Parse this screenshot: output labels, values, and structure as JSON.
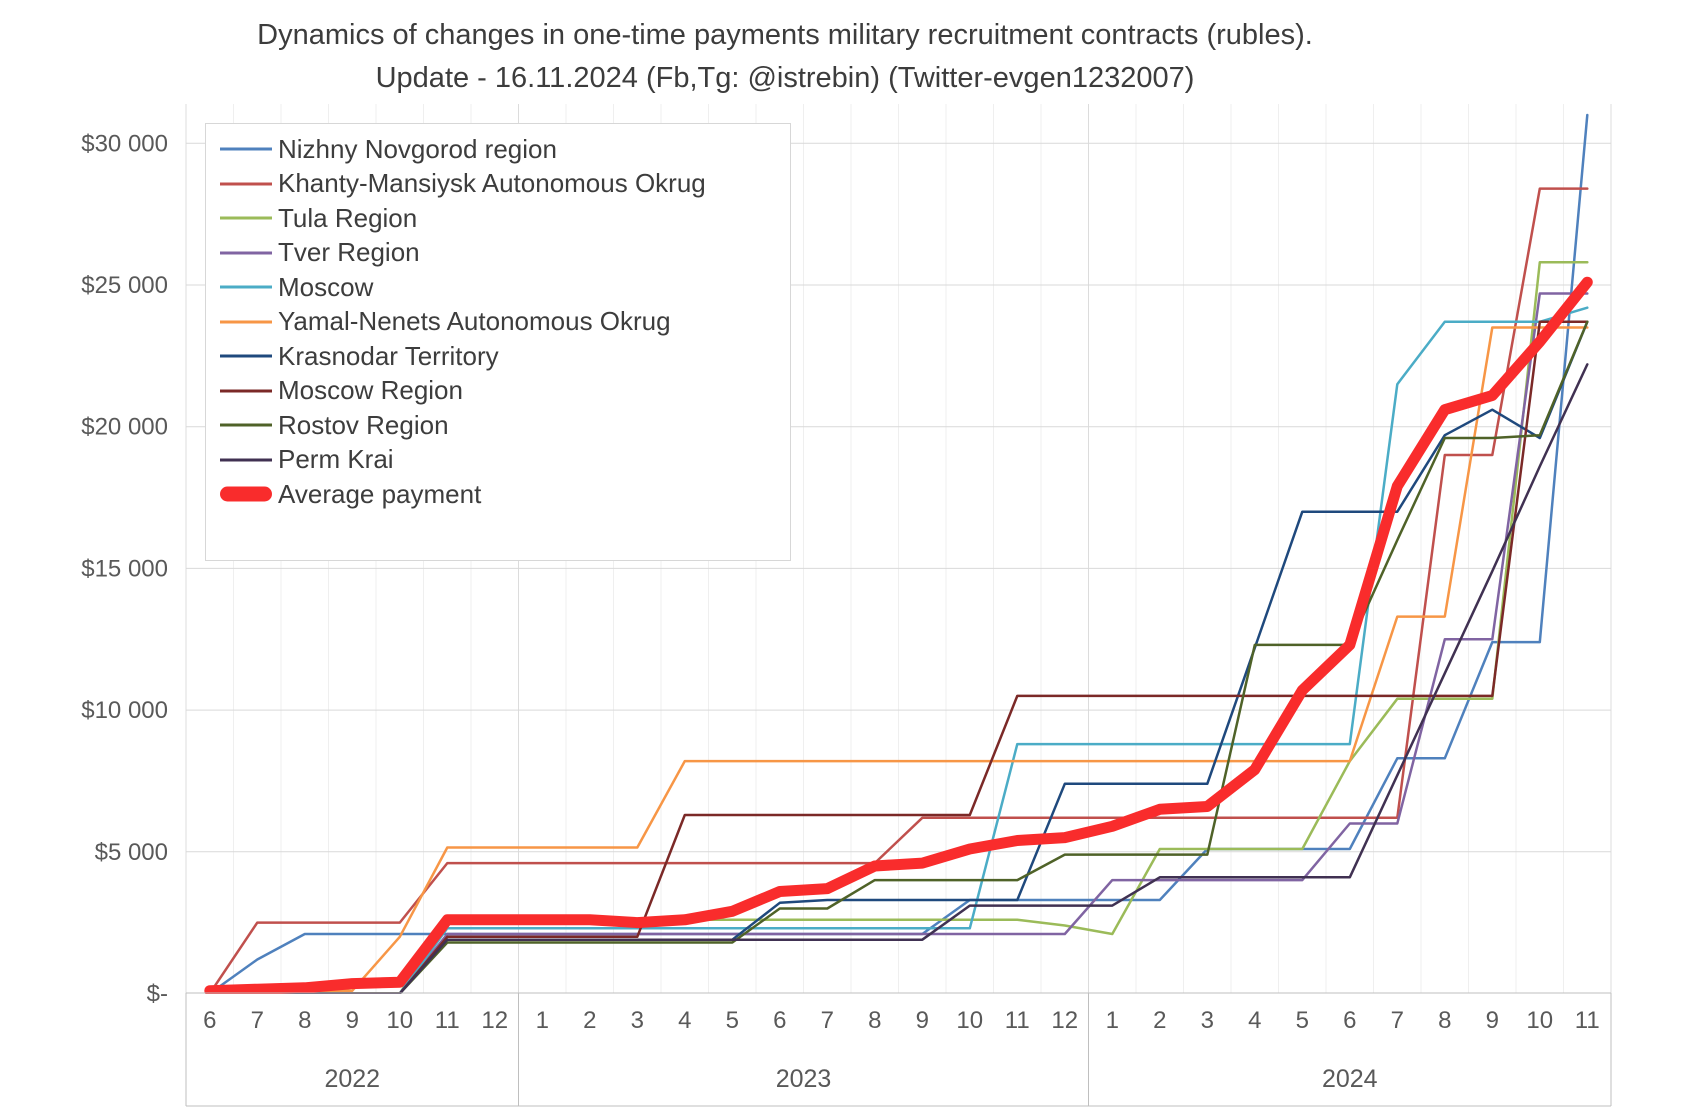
{
  "title": {
    "line1": "Dynamics of changes in one-time payments military recruitment contracts (rubles).",
    "line2": "Update - 16.11.2024 (Fb,Tg: @istrebin) (Twitter-evgen1232007)"
  },
  "chart_data": {
    "type": "line",
    "title": "Dynamics of changes in one-time payments military recruitment contracts (rubles). Update - 16.11.2024 (Fb,Tg: @istrebin) (Twitter-evgen1232007)",
    "xlabel": "",
    "ylabel": "",
    "grid": true,
    "legend_position": "top-left-inside",
    "ylim": [
      0,
      31500
    ],
    "y_ticks": [
      {
        "value": 0,
        "label": "$-"
      },
      {
        "value": 5000,
        "label": "$5 000"
      },
      {
        "value": 10000,
        "label": "$10 000"
      },
      {
        "value": 15000,
        "label": "$15 000"
      },
      {
        "value": 20000,
        "label": "$20 000"
      },
      {
        "value": 25000,
        "label": "$25 000"
      },
      {
        "value": 30000,
        "label": "$30 000"
      }
    ],
    "x_month_labels": [
      "6",
      "7",
      "8",
      "9",
      "10",
      "11",
      "12",
      "1",
      "2",
      "3",
      "4",
      "5",
      "6",
      "7",
      "8",
      "9",
      "10",
      "11",
      "12",
      "1",
      "2",
      "3",
      "4",
      "5",
      "6",
      "7",
      "8",
      "9",
      "10",
      "11"
    ],
    "year_groups": [
      {
        "year": "2022",
        "months": 7
      },
      {
        "year": "2023",
        "months": 12
      },
      {
        "year": "2024",
        "months": 11
      }
    ],
    "series": [
      {
        "name": "Nizhny Novgorod region",
        "color": "#4F81BD",
        "width": 2.5,
        "values": [
          0,
          1200,
          2100,
          2100,
          2100,
          2100,
          2100,
          2100,
          2100,
          2100,
          2100,
          2100,
          2100,
          2100,
          2100,
          2100,
          3300,
          3300,
          3300,
          3300,
          3300,
          5100,
          5100,
          5100,
          5100,
          8300,
          8300,
          12400,
          12400,
          31000
        ]
      },
      {
        "name": "Khanty-Mansiysk Autonomous Okrug",
        "color": "#C0504D",
        "width": 2.5,
        "values": [
          0,
          2500,
          2500,
          2500,
          2500,
          4600,
          4600,
          4600,
          4600,
          4600,
          4600,
          4600,
          4600,
          4600,
          4600,
          6200,
          6200,
          6200,
          6200,
          6200,
          6200,
          6200,
          6200,
          6200,
          6200,
          6200,
          19000,
          19000,
          28400,
          28400
        ]
      },
      {
        "name": "Tula Region",
        "color": "#9BBB59",
        "width": 2.5,
        "values": [
          0,
          0,
          0,
          0,
          0,
          2600,
          2600,
          2600,
          2600,
          2600,
          2600,
          2600,
          2600,
          2600,
          2600,
          2600,
          2600,
          2600,
          2400,
          2100,
          5100,
          5100,
          5100,
          5100,
          8200,
          10400,
          10400,
          10400,
          25800,
          25800
        ]
      },
      {
        "name": "Tver Region",
        "color": "#8064A2",
        "width": 2.5,
        "values": [
          0,
          0,
          0,
          0,
          0,
          2100,
          2100,
          2100,
          2100,
          2100,
          2100,
          2100,
          2100,
          2100,
          2100,
          2100,
          2100,
          2100,
          2100,
          4000,
          4000,
          4000,
          4000,
          4000,
          6000,
          6000,
          12500,
          12500,
          24700,
          24700
        ]
      },
      {
        "name": "Moscow",
        "color": "#4BACC6",
        "width": 2.5,
        "values": [
          0,
          0,
          0,
          0,
          0,
          2300,
          2300,
          2300,
          2300,
          2300,
          2300,
          2300,
          2300,
          2300,
          2300,
          2300,
          2300,
          8800,
          8800,
          8800,
          8800,
          8800,
          8800,
          8800,
          8800,
          21500,
          23700,
          23700,
          23700,
          24200
        ]
      },
      {
        "name": "Yamal-Nenets Autonomous Okrug",
        "color": "#F79646",
        "width": 2.5,
        "values": [
          100,
          100,
          100,
          100,
          2000,
          5150,
          5150,
          5150,
          5150,
          5150,
          8200,
          8200,
          8200,
          8200,
          8200,
          8200,
          8200,
          8200,
          8200,
          8200,
          8200,
          8200,
          8200,
          8200,
          8200,
          13300,
          13300,
          23500,
          23500,
          23500
        ]
      },
      {
        "name": "Krasnodar Territory",
        "color": "#1F497D",
        "width": 2.5,
        "values": [
          0,
          0,
          0,
          0,
          0,
          1900,
          1900,
          1900,
          1900,
          1900,
          1900,
          1900,
          3200,
          3300,
          3300,
          3300,
          3300,
          3300,
          7400,
          7400,
          7400,
          7400,
          12200,
          17000,
          17000,
          17000,
          19700,
          20600,
          19600,
          23700
        ]
      },
      {
        "name": "Moscow Region",
        "color": "#7B2927",
        "width": 2.5,
        "values": [
          0,
          0,
          0,
          0,
          0,
          2000,
          2000,
          2000,
          2000,
          2000,
          6300,
          6300,
          6300,
          6300,
          6300,
          6300,
          6300,
          10500,
          10500,
          10500,
          10500,
          10500,
          10500,
          10500,
          10500,
          10500,
          10500,
          10500,
          23700,
          23700
        ]
      },
      {
        "name": "Rostov Region",
        "color": "#4F6228",
        "width": 2.5,
        "values": [
          0,
          0,
          0,
          0,
          0,
          1800,
          1800,
          1800,
          1800,
          1800,
          1800,
          1800,
          3000,
          3000,
          4000,
          4000,
          4000,
          4000,
          4900,
          4900,
          4900,
          4900,
          12300,
          12300,
          12300,
          16000,
          19600,
          19600,
          19700,
          23700
        ]
      },
      {
        "name": "Perm Krai",
        "color": "#403152",
        "width": 2.5,
        "values": [
          0,
          0,
          0,
          0,
          0,
          1900,
          1900,
          1900,
          1900,
          1900,
          1900,
          1900,
          1900,
          1900,
          1900,
          1900,
          3100,
          3100,
          3100,
          3100,
          4100,
          4100,
          4100,
          4100,
          4100,
          7700,
          11300,
          14900,
          18600,
          22200
        ]
      },
      {
        "name": "Average payment",
        "color": "#F92C2C",
        "width": 11,
        "values": [
          100,
          150,
          200,
          350,
          400,
          2600,
          2600,
          2600,
          2600,
          2500,
          2600,
          2900,
          3600,
          3700,
          4500,
          4600,
          5100,
          5400,
          5500,
          5900,
          6500,
          6600,
          7900,
          10700,
          12300,
          17900,
          20600,
          21100,
          23000,
          25100
        ]
      }
    ]
  }
}
